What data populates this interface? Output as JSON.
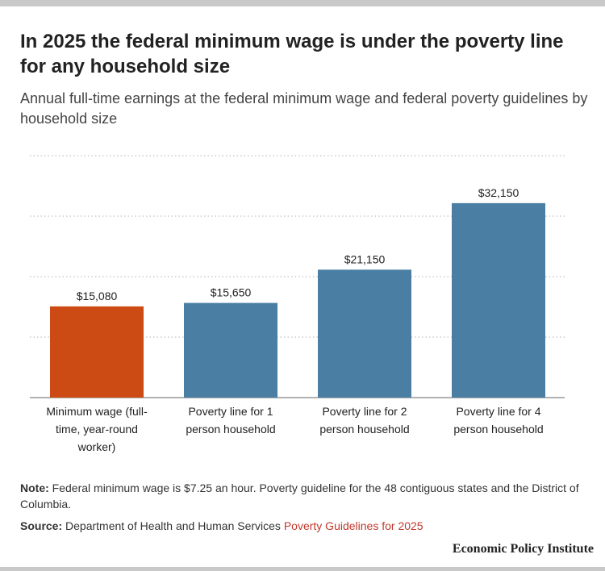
{
  "title": "In 2025 the federal minimum wage is under the poverty line for any household size",
  "subtitle": "Annual full-time earnings at the federal minimum wage and federal poverty guidelines by household size",
  "note_label": "Note:",
  "note_text": "Federal minimum wage is $7.25 an hour. Poverty guideline for the 48 contiguous states and the District of Columbia.",
  "source_label": "Source:",
  "source_text": "Department of Health and Human Services",
  "source_link": "Poverty Guidelines for 2025",
  "brand": "Economic Policy Institute",
  "colors": {
    "highlight": "#cc4a13",
    "bar": "#4a7fa3",
    "link": "#c0392b",
    "grid": "#cccccc"
  },
  "chart_data": {
    "type": "bar",
    "categories": [
      [
        "Minimum wage (full-",
        "time, year-round",
        "worker)"
      ],
      [
        "Poverty line for 1",
        "person household"
      ],
      [
        "Poverty line for 2",
        "person household"
      ],
      [
        "Poverty line for 4",
        "person household"
      ]
    ],
    "values": [
      15080,
      15650,
      21150,
      32150
    ],
    "data_labels": [
      "$15,080",
      "$15,650",
      "$21,150",
      "$32,150"
    ],
    "bar_colors": [
      "#cc4a13",
      "#4a7fa3",
      "#4a7fa3",
      "#4a7fa3"
    ],
    "ylim": [
      0,
      40000
    ],
    "gridlines": [
      10000,
      20000,
      30000,
      40000
    ],
    "grid": true,
    "legend": "none"
  }
}
